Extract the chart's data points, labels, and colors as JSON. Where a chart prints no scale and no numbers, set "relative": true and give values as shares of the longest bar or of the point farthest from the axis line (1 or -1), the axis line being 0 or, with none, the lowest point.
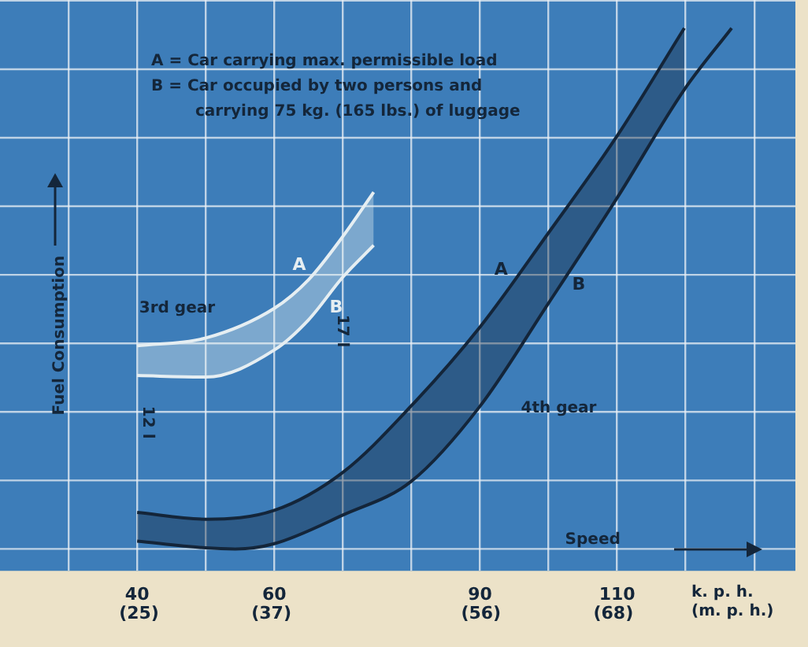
{
  "chart_data": {
    "type": "line",
    "relative": true,
    "xlabel": "k. p. h.",
    "x2label": "(m. p. h.)",
    "ylabel": "Fuel Consumption",
    "x2lim": [
      12.4,
      84.5
    ],
    "x2ticks": [
      {
        "value": 25,
        "label": "(25)"
      },
      {
        "value": 37,
        "label": "(37)"
      },
      {
        "value": 56,
        "label": "(56)"
      },
      {
        "value": 68,
        "label": "(68)"
      }
    ],
    "xlim": [
      20,
      136
    ],
    "xticks": [
      {
        "value": 30,
        "label": null
      },
      40,
      {
        "value": 50,
        "label": null
      },
      60,
      {
        "value": 70,
        "label": null
      },
      {
        "value": 80,
        "label": null
      },
      90,
      {
        "value": 100,
        "label": null
      },
      110,
      {
        "value": 120,
        "label": null
      },
      {
        "value": 130,
        "label": null
      }
    ],
    "grid": true,
    "legend": false,
    "marker": "none",
    "line_style": "solid",
    "series": [
      {
        "name": "A",
        "color": "#e6eef2",
        "x": [
          40,
          50,
          60,
          65,
          70,
          74.5
        ],
        "values": [
          0.39,
          0.405,
          0.462,
          0.517,
          0.6,
          0.685
        ],
        "lower": [
          0.333,
          0.33,
          0.382,
          0.44,
          0.522,
          0.583
        ],
        "upper": [
          0.39,
          0.405,
          0.462,
          0.517,
          0.6,
          0.685
        ]
      },
      {
        "name": "B",
        "color": "#e6eef2",
        "x": [
          40,
          50,
          60,
          65,
          70,
          74.5
        ],
        "values": [
          0.333,
          0.33,
          0.382,
          0.44,
          0.522,
          0.583
        ]
      },
      {
        "name": "A",
        "color": "#14263a",
        "x": [
          40,
          50,
          60,
          70,
          80,
          90,
          100,
          110,
          119.8
        ],
        "values": [
          0.07,
          0.057,
          0.074,
          0.147,
          0.275,
          0.426,
          0.607,
          0.793,
          1
        ],
        "lower": [
          0.015,
          0.002,
          0.01,
          0.065,
          0.13,
          0.274,
          0.472,
          0.674,
          0.882
        ],
        "upper": [
          0.07,
          0.057,
          0.074,
          0.147,
          0.275,
          0.426,
          0.607,
          0.793,
          1
        ]
      },
      {
        "name": "B",
        "color": "#14263a",
        "x": [
          40,
          50,
          54.3,
          60,
          70,
          80,
          90,
          100,
          110,
          119.8,
          126.7
        ],
        "values": [
          0.015,
          0.002,
          0,
          0.01,
          0.065,
          0.13,
          0.274,
          0.472,
          0.674,
          0.882,
          1
        ]
      }
    ],
    "annotations": [
      "A = Car carrying max. permissible load",
      "B = Car occupied by two persons and carrying 75 kg. (165 lbs.) of luggage",
      "Speed",
      "3rd gear",
      "4th gear",
      "12 l",
      "17 l"
    ]
  }
}
